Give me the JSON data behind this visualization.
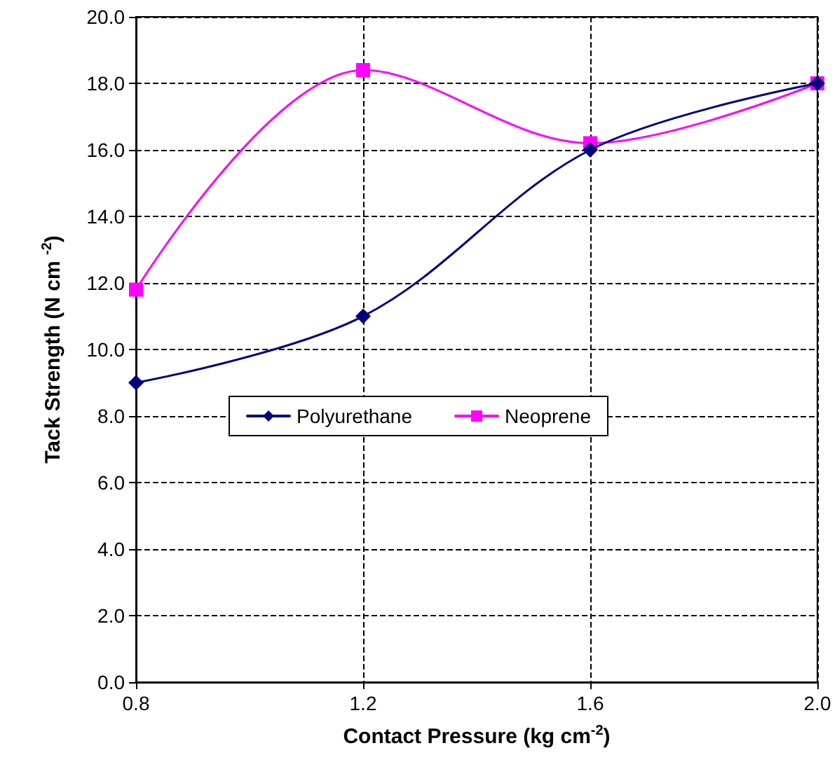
{
  "chart_data": {
    "type": "line",
    "xlabel": "Contact Pressure (kg cm$^{-2}$)",
    "ylabel": "Tack Strength (N cm $^{-2}$)",
    "x": [
      0.8,
      1.2,
      1.6,
      2.0
    ],
    "series": [
      {
        "name": "Polyurethane",
        "color": "#000080",
        "values": [
          9.0,
          11.0,
          16.0,
          18.0
        ],
        "marker": "diamond"
      },
      {
        "name": "Neoprene",
        "color": "#ff00ff",
        "values": [
          11.8,
          18.4,
          16.2,
          18.0
        ],
        "marker": "square"
      }
    ],
    "xlim": [
      0.8,
      2.0
    ],
    "xticks": [
      {
        "value": 0.8,
        "label": "0.8"
      },
      {
        "value": 1.2,
        "label": "1.2"
      },
      {
        "value": 1.6,
        "label": "1.6"
      },
      {
        "value": 2.0,
        "label": "2.0"
      }
    ],
    "ylim": [
      0,
      20
    ],
    "yticks": [
      {
        "value": 0,
        "label": "0.0"
      },
      {
        "value": 2,
        "label": "2.0"
      },
      {
        "value": 4,
        "label": "4.0"
      },
      {
        "value": 6,
        "label": "6.0"
      },
      {
        "value": 8,
        "label": "8.0"
      },
      {
        "value": 10,
        "label": "10.0"
      },
      {
        "value": 12,
        "label": "12.0"
      },
      {
        "value": 14,
        "label": "14.0"
      },
      {
        "value": 16,
        "label": "16.0"
      },
      {
        "value": 18,
        "label": "18.0"
      },
      {
        "value": 20,
        "label": "20.0"
      }
    ],
    "grid": true,
    "legend": "center",
    "line_style": "solid"
  }
}
